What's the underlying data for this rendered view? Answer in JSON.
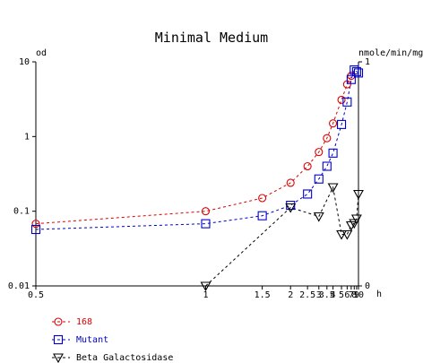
{
  "chart_data": {
    "type": "line",
    "title": "Minimal Medium",
    "xlabel": "h",
    "ylabel_left": "od",
    "ylabel_right": "nmole/min/mg",
    "x_ticks": [
      "0.5",
      "1",
      "1.5",
      "2",
      "2.5",
      "3",
      "3.5",
      "4",
      "5",
      "6",
      "7",
      "8",
      "9",
      "10"
    ],
    "xlim": [
      0.5,
      10
    ],
    "x_scale": "reciprocal",
    "y_left": {
      "scale": "log",
      "lim": [
        0.01,
        10
      ],
      "ticks": [
        "0.01",
        "0.1",
        "1",
        "10"
      ]
    },
    "y_right": {
      "scale": "linear",
      "lim": [
        0,
        1
      ],
      "ticks": [
        "0",
        "1"
      ]
    },
    "legend_position": "bottom-left",
    "series": [
      {
        "name": "168",
        "axis": "left",
        "marker": "circle",
        "color": "#dd0000",
        "x": [
          0.5,
          1,
          1.5,
          2,
          2.5,
          3,
          3.5,
          4,
          5,
          6,
          7
        ],
        "y": [
          0.068,
          0.1,
          0.15,
          0.24,
          0.4,
          0.62,
          0.95,
          1.5,
          3.1,
          5.0,
          6.5
        ]
      },
      {
        "name": "Mutant",
        "axis": "left",
        "marker": "square",
        "color": "#0000cc",
        "x": [
          0.5,
          1,
          1.5,
          2,
          2.5,
          3,
          3.5,
          4,
          5,
          6,
          7,
          8,
          9,
          10
        ],
        "y": [
          0.057,
          0.068,
          0.087,
          0.12,
          0.17,
          0.27,
          0.4,
          0.6,
          1.45,
          2.9,
          5.8,
          7.8,
          7.4,
          7.1
        ]
      },
      {
        "name": "Beta Galactosidase",
        "axis": "right",
        "marker": "triangle-down",
        "color": "#000000",
        "x": [
          1,
          2,
          3,
          4,
          5,
          6,
          7,
          8,
          9,
          10
        ],
        "y": [
          0.0,
          0.35,
          0.31,
          0.44,
          0.23,
          0.23,
          0.27,
          0.28,
          0.3,
          0.41
        ]
      }
    ]
  }
}
